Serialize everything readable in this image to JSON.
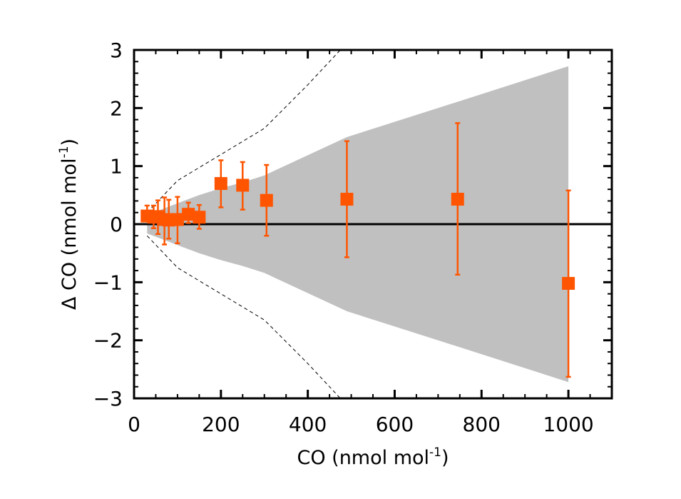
{
  "chart_data": {
    "type": "scatter",
    "xlabel": "CO (nmol mol",
    "xlabel_sup": "-1",
    "xlabel_end": ")",
    "ylabel": "Δ CO (nmol mol",
    "ylabel_sup": "-1",
    "ylabel_end": ")",
    "xlim": [
      0,
      1100
    ],
    "ylim": [
      -3,
      3
    ],
    "x_ticks": [
      0,
      200,
      400,
      600,
      800,
      1000
    ],
    "y_ticks": [
      -3,
      -2,
      -1,
      0,
      1,
      2,
      3
    ],
    "x_tick_labels": [
      "0",
      "200",
      "400",
      "600",
      "800",
      "1000"
    ],
    "y_tick_labels": [
      "−3",
      "−2",
      "−1",
      "0",
      "1",
      "2",
      "3"
    ],
    "grid": false,
    "colors": {
      "points": "#ff5500",
      "band": "#c0c0c0",
      "zero_line": "#000000",
      "dashed": "#000000"
    },
    "points": [
      {
        "x": 30,
        "y": 0.14,
        "err_low": 0.1,
        "err_high": 0.32
      },
      {
        "x": 45,
        "y": 0.12,
        "err_low": -0.07,
        "err_high": 0.32
      },
      {
        "x": 55,
        "y": 0.13,
        "err_low": -0.17,
        "err_high": 0.41
      },
      {
        "x": 70,
        "y": 0.08,
        "err_low": -0.35,
        "err_high": 0.46
      },
      {
        "x": 80,
        "y": 0.07,
        "err_low": -0.25,
        "err_high": 0.42
      },
      {
        "x": 100,
        "y": 0.08,
        "err_low": -0.33,
        "err_high": 0.47
      },
      {
        "x": 125,
        "y": 0.17,
        "err_low": 0.02,
        "err_high": 0.37
      },
      {
        "x": 150,
        "y": 0.12,
        "err_low": -0.08,
        "err_high": 0.33
      },
      {
        "x": 200,
        "y": 0.7,
        "err_low": 0.29,
        "err_high": 1.1
      },
      {
        "x": 250,
        "y": 0.67,
        "err_low": 0.25,
        "err_high": 1.07
      },
      {
        "x": 305,
        "y": 0.41,
        "err_low": -0.2,
        "err_high": 1.02
      },
      {
        "x": 490,
        "y": 0.43,
        "err_low": -0.57,
        "err_high": 1.43
      },
      {
        "x": 745,
        "y": 0.43,
        "err_low": -0.87,
        "err_high": 1.74
      },
      {
        "x": 1000,
        "y": -1.02,
        "err_low": -2.63,
        "err_high": 0.58
      }
    ],
    "band": {
      "x": [
        30,
        100,
        150,
        200,
        250,
        300,
        490,
        750,
        1000
      ],
      "upper": [
        0.16,
        0.36,
        0.5,
        0.62,
        0.72,
        0.84,
        1.5,
        2.12,
        2.72
      ],
      "lower": [
        -0.16,
        -0.36,
        -0.5,
        -0.62,
        -0.72,
        -0.84,
        -1.5,
        -2.12,
        -2.72
      ]
    },
    "dashed_upper": {
      "x": [
        30,
        100,
        200,
        300,
        400,
        500
      ],
      "y": [
        0.2,
        0.75,
        1.2,
        1.65,
        2.4,
        3.2
      ]
    },
    "dashed_lower": {
      "x": [
        30,
        100,
        200,
        300,
        400,
        500
      ],
      "y": [
        -0.2,
        -0.75,
        -1.2,
        -1.65,
        -2.4,
        -3.2
      ]
    },
    "zero_line": 0
  }
}
